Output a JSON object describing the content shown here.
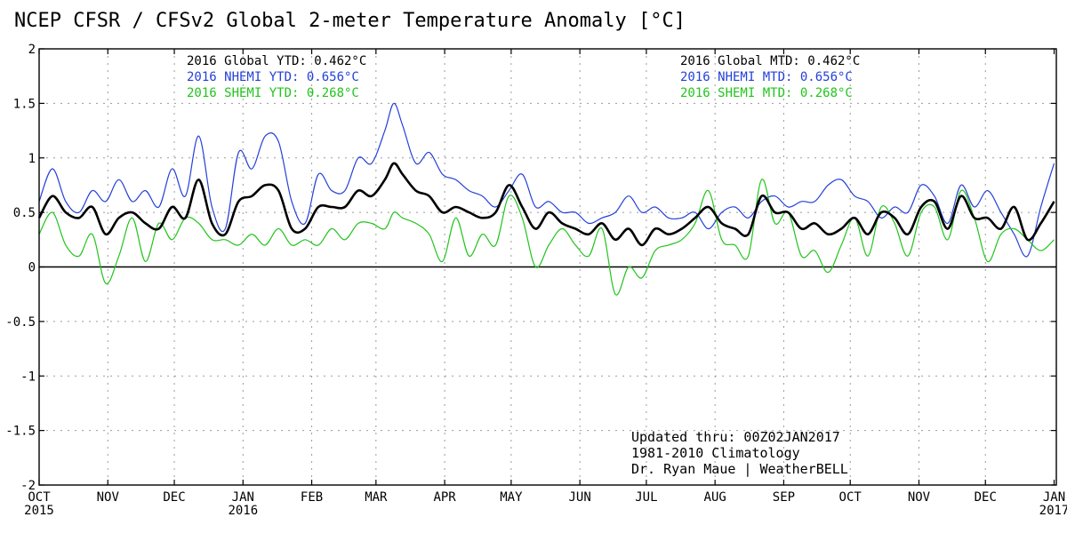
{
  "title": "NCEP CFSR / CFSv2 Global 2-meter Temperature Anomaly [°C]",
  "colors": {
    "global": "#000000",
    "nhemi": "#2440d8",
    "shemi": "#22c41c",
    "zero": "#000000"
  },
  "stats_ytd": [
    {
      "text": "2016 Global YTD: 0.462°C",
      "series": "global"
    },
    {
      "text": "2016 NHEMI YTD: 0.656°C",
      "series": "nhemi"
    },
    {
      "text": "2016 SHEMI YTD: 0.268°C",
      "series": "shemi"
    }
  ],
  "stats_mtd": [
    {
      "text": "2016 Global MTD: 0.462°C",
      "series": "global"
    },
    {
      "text": "2016 NHEMI MTD: 0.656°C",
      "series": "nhemi"
    },
    {
      "text": "2016 SHEMI MTD: 0.268°C",
      "series": "shemi"
    }
  ],
  "notes": [
    "Updated thru: 00Z02JAN2017",
    "1981-2010 Climatology",
    "Dr. Ryan Maue | WeatherBELL"
  ],
  "chart_data": {
    "type": "line",
    "xlim": [
      0,
      459
    ],
    "ylim": [
      -2,
      2
    ],
    "yticks": [
      -2,
      -1.5,
      -1,
      -0.5,
      0,
      0.5,
      1,
      1.5,
      2
    ],
    "ytick_labels": [
      "-2",
      "-1.5",
      "-1",
      "-0.5",
      "0",
      "0.5",
      "1",
      "1.5",
      "2"
    ],
    "xticks": [
      {
        "x": 0,
        "label": "OCT",
        "sub": "2015"
      },
      {
        "x": 31,
        "label": "NOV",
        "sub": ""
      },
      {
        "x": 61,
        "label": "DEC",
        "sub": ""
      },
      {
        "x": 92,
        "label": "JAN",
        "sub": "2016"
      },
      {
        "x": 123,
        "label": "FEB",
        "sub": ""
      },
      {
        "x": 152,
        "label": "MAR",
        "sub": ""
      },
      {
        "x": 183,
        "label": "APR",
        "sub": ""
      },
      {
        "x": 213,
        "label": "MAY",
        "sub": ""
      },
      {
        "x": 244,
        "label": "JUN",
        "sub": ""
      },
      {
        "x": 274,
        "label": "JUL",
        "sub": ""
      },
      {
        "x": 305,
        "label": "AUG",
        "sub": ""
      },
      {
        "x": 336,
        "label": "SEP",
        "sub": ""
      },
      {
        "x": 366,
        "label": "OCT",
        "sub": ""
      },
      {
        "x": 397,
        "label": "NOV",
        "sub": ""
      },
      {
        "x": 427,
        "label": "DEC",
        "sub": ""
      },
      {
        "x": 458,
        "label": "JAN",
        "sub": "2017"
      }
    ],
    "grid": true,
    "series": [
      {
        "key": "nhemi",
        "x": [
          0,
          6,
          12,
          18,
          24,
          30,
          36,
          42,
          48,
          54,
          60,
          66,
          72,
          78,
          84,
          90,
          96,
          102,
          108,
          114,
          120,
          126,
          132,
          138,
          144,
          150,
          156,
          160,
          164,
          170,
          176,
          182,
          188,
          194,
          200,
          206,
          212,
          218,
          224,
          230,
          236,
          242,
          248,
          254,
          260,
          266,
          272,
          278,
          284,
          290,
          296,
          302,
          308,
          314,
          320,
          326,
          332,
          338,
          344,
          350,
          356,
          362,
          368,
          374,
          380,
          386,
          392,
          398,
          404,
          410,
          416,
          422,
          428,
          434,
          440,
          446,
          452,
          458
        ],
        "y": [
          0.6,
          0.9,
          0.6,
          0.5,
          0.7,
          0.6,
          0.8,
          0.6,
          0.7,
          0.55,
          0.9,
          0.65,
          1.2,
          0.55,
          0.35,
          1.05,
          0.9,
          1.2,
          1.15,
          0.6,
          0.4,
          0.85,
          0.7,
          0.7,
          1.0,
          0.95,
          1.25,
          1.5,
          1.3,
          0.95,
          1.05,
          0.85,
          0.8,
          0.7,
          0.65,
          0.55,
          0.7,
          0.85,
          0.55,
          0.6,
          0.5,
          0.5,
          0.4,
          0.45,
          0.5,
          0.65,
          0.5,
          0.55,
          0.45,
          0.45,
          0.5,
          0.35,
          0.5,
          0.55,
          0.45,
          0.6,
          0.65,
          0.55,
          0.6,
          0.6,
          0.75,
          0.8,
          0.65,
          0.6,
          0.45,
          0.55,
          0.5,
          0.75,
          0.65,
          0.4,
          0.75,
          0.55,
          0.7,
          0.5,
          0.3,
          0.1,
          0.55,
          0.95
        ]
      },
      {
        "key": "shemi",
        "x": [
          0,
          6,
          12,
          18,
          24,
          30,
          36,
          42,
          48,
          54,
          60,
          66,
          72,
          78,
          84,
          90,
          96,
          102,
          108,
          114,
          120,
          126,
          132,
          138,
          144,
          150,
          156,
          160,
          164,
          170,
          176,
          182,
          188,
          194,
          200,
          206,
          212,
          218,
          224,
          230,
          236,
          242,
          248,
          254,
          260,
          266,
          272,
          278,
          284,
          290,
          296,
          302,
          308,
          314,
          320,
          326,
          332,
          338,
          344,
          350,
          356,
          362,
          368,
          374,
          380,
          386,
          392,
          398,
          404,
          410,
          416,
          422,
          428,
          434,
          440,
          446,
          452,
          458
        ],
        "y": [
          0.3,
          0.5,
          0.2,
          0.1,
          0.3,
          -0.15,
          0.1,
          0.45,
          0.05,
          0.4,
          0.25,
          0.45,
          0.4,
          0.25,
          0.25,
          0.2,
          0.3,
          0.2,
          0.35,
          0.2,
          0.25,
          0.2,
          0.35,
          0.25,
          0.4,
          0.4,
          0.35,
          0.5,
          0.45,
          0.4,
          0.3,
          0.05,
          0.45,
          0.1,
          0.3,
          0.2,
          0.65,
          0.45,
          0.0,
          0.2,
          0.35,
          0.2,
          0.1,
          0.35,
          -0.25,
          0.0,
          -0.1,
          0.15,
          0.2,
          0.25,
          0.4,
          0.7,
          0.25,
          0.2,
          0.1,
          0.8,
          0.4,
          0.5,
          0.1,
          0.15,
          -0.05,
          0.2,
          0.45,
          0.1,
          0.55,
          0.4,
          0.1,
          0.5,
          0.55,
          0.25,
          0.7,
          0.45,
          0.05,
          0.3,
          0.35,
          0.25,
          0.15,
          0.25
        ]
      },
      {
        "key": "global",
        "x": [
          0,
          6,
          12,
          18,
          24,
          30,
          36,
          42,
          48,
          54,
          60,
          66,
          72,
          78,
          84,
          90,
          96,
          102,
          108,
          114,
          120,
          126,
          132,
          138,
          144,
          150,
          156,
          160,
          164,
          170,
          176,
          182,
          188,
          194,
          200,
          206,
          212,
          218,
          224,
          230,
          236,
          242,
          248,
          254,
          260,
          266,
          272,
          278,
          284,
          290,
          296,
          302,
          308,
          314,
          320,
          326,
          332,
          338,
          344,
          350,
          356,
          362,
          368,
          374,
          380,
          386,
          392,
          398,
          404,
          410,
          416,
          422,
          428,
          434,
          440,
          446,
          452,
          458
        ],
        "y": [
          0.45,
          0.65,
          0.5,
          0.45,
          0.55,
          0.3,
          0.45,
          0.5,
          0.4,
          0.35,
          0.55,
          0.45,
          0.8,
          0.4,
          0.3,
          0.6,
          0.65,
          0.75,
          0.7,
          0.35,
          0.35,
          0.55,
          0.55,
          0.55,
          0.7,
          0.65,
          0.8,
          0.95,
          0.85,
          0.7,
          0.65,
          0.5,
          0.55,
          0.5,
          0.45,
          0.5,
          0.75,
          0.55,
          0.35,
          0.5,
          0.4,
          0.35,
          0.3,
          0.4,
          0.25,
          0.35,
          0.2,
          0.35,
          0.3,
          0.35,
          0.45,
          0.55,
          0.4,
          0.35,
          0.3,
          0.65,
          0.5,
          0.5,
          0.35,
          0.4,
          0.3,
          0.35,
          0.45,
          0.3,
          0.5,
          0.45,
          0.3,
          0.55,
          0.6,
          0.35,
          0.65,
          0.45,
          0.45,
          0.35,
          0.55,
          0.25,
          0.4,
          0.6
        ]
      }
    ]
  }
}
